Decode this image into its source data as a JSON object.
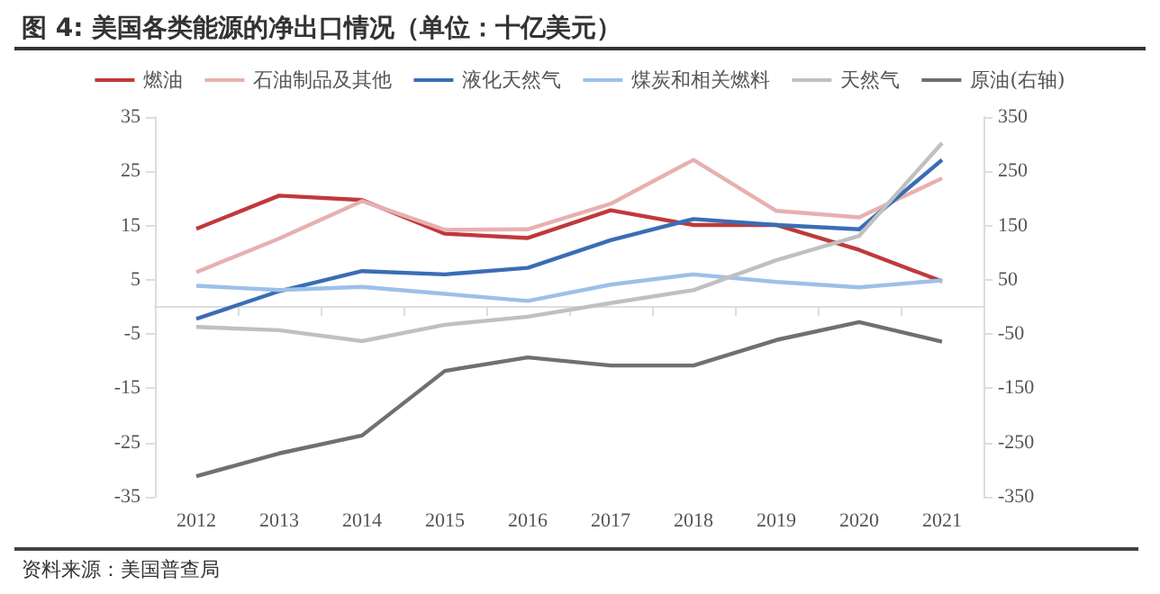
{
  "chart_data": {
    "type": "line",
    "title": "图 4: 美国各类能源的净出口情况（单位：十亿美元）",
    "categories": [
      "2012",
      "2013",
      "2014",
      "2015",
      "2016",
      "2017",
      "2018",
      "2019",
      "2020",
      "2021"
    ],
    "series": [
      {
        "name": "燃油",
        "color": "#c0393b",
        "values": [
          14.4,
          20.5,
          19.7,
          13.5,
          12.7,
          17.8,
          15.1,
          15.1,
          10.5,
          4.7
        ]
      },
      {
        "name": "石油制品及其他",
        "color": "#e8b0b0",
        "values": [
          6.4,
          12.6,
          19.5,
          14.2,
          14.3,
          19.0,
          27.1,
          17.7,
          16.5,
          23.7
        ]
      },
      {
        "name": "液化天然气",
        "color": "#3a6db5",
        "values": [
          -2.2,
          2.9,
          6.6,
          6.0,
          7.2,
          12.3,
          16.2,
          15.1,
          14.3,
          27.1
        ]
      },
      {
        "name": "煤炭和相关燃料",
        "color": "#9dc0e8",
        "values": [
          3.9,
          3.1,
          3.7,
          2.4,
          1.1,
          4.1,
          6.0,
          4.6,
          3.6,
          4.9
        ]
      },
      {
        "name": "天然气",
        "color": "#c0c0c0",
        "values": [
          -3.7,
          -4.3,
          -6.3,
          -3.3,
          -1.8,
          0.7,
          3.1,
          8.6,
          13.1,
          30.2
        ]
      },
      {
        "name": "原油(右轴)",
        "color": "#707070",
        "axis": "y2",
        "values": [
          -312,
          -270,
          -237,
          -118,
          -93,
          -108,
          -108,
          -61,
          -28,
          -64
        ]
      }
    ],
    "ylim": [
      -35,
      35
    ],
    "yticks": [
      -35,
      -25,
      -15,
      -5,
      5,
      15,
      25,
      35
    ],
    "y2lim": [
      -350,
      350
    ],
    "y2ticks": [
      -350,
      -250,
      -150,
      -50,
      50,
      150,
      250,
      350
    ],
    "grid": false,
    "legend": "top",
    "marker": "none",
    "line_style": "solid",
    "annotations": [
      "资料来源：美国普查局"
    ]
  }
}
